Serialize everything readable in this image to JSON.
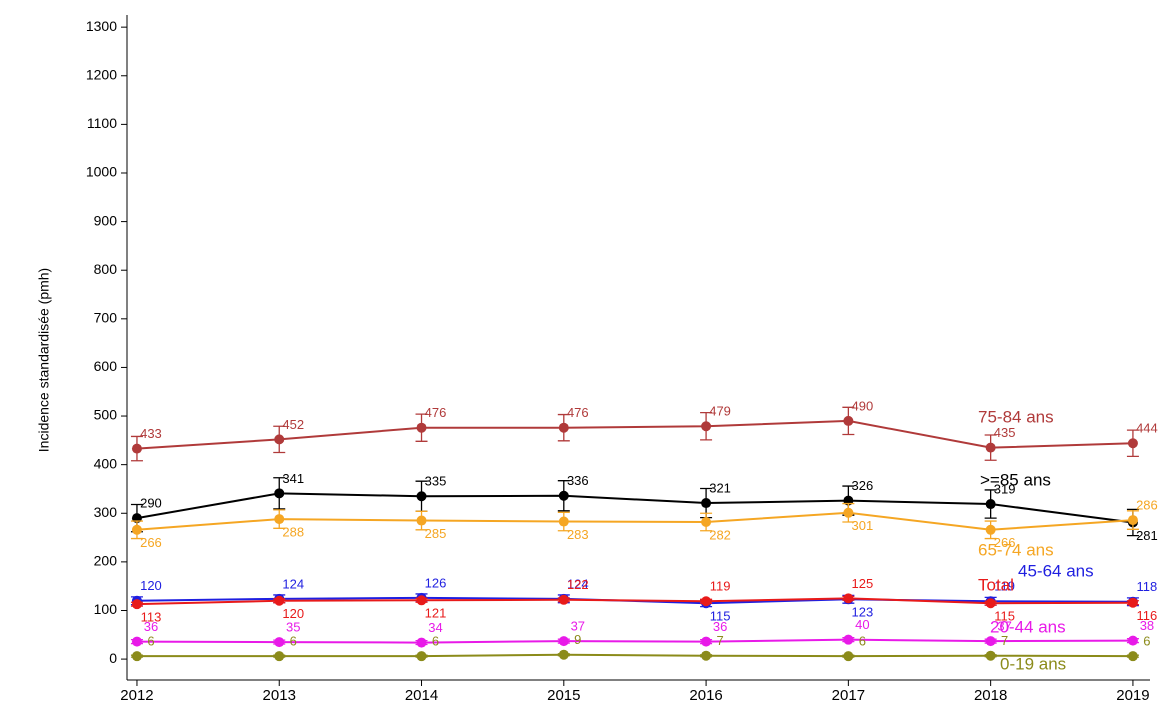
{
  "chart_data": {
    "type": "line",
    "y_label": "Incidence standardisée (pmh)",
    "x": [
      2012,
      2013,
      2014,
      2015,
      2016,
      2017,
      2018,
      2019
    ],
    "xlim": [
      2011.93,
      2019.12
    ],
    "xticks": [
      2012,
      2013,
      2014,
      2015,
      2016,
      2017,
      2018,
      2019
    ],
    "ylim": [
      -43,
      1325
    ],
    "yticks": [
      0,
      100,
      200,
      300,
      400,
      500,
      600,
      700,
      800,
      900,
      1000,
      1100,
      1200,
      1300
    ],
    "grid": false,
    "series": [
      {
        "name": "75-84 ans",
        "color": "#b03a3a",
        "values": [
          433,
          452,
          476,
          476,
          479,
          490,
          435,
          444
        ],
        "errors": [
          25,
          27,
          28,
          27,
          28,
          28,
          26,
          27
        ]
      },
      {
        "name": ">=85 ans",
        "color": "#000000",
        "values": [
          290,
          341,
          335,
          336,
          321,
          326,
          319,
          281
        ],
        "errors": [
          28,
          32,
          31,
          31,
          30,
          30,
          29,
          27
        ]
      },
      {
        "name": "65-74 ans",
        "color": "#f5a623",
        "values": [
          266,
          288,
          285,
          283,
          282,
          301,
          266,
          286
        ],
        "errors": [
          18,
          19,
          19,
          19,
          18,
          19,
          18,
          19
        ]
      },
      {
        "name": "45-64 ans",
        "color": "#1f1fe0",
        "values": [
          120,
          124,
          126,
          124,
          115,
          123,
          119,
          118
        ],
        "errors": [
          8,
          8,
          8,
          8,
          7,
          8,
          8,
          8
        ]
      },
      {
        "name": "Total",
        "color": "#e81a1a",
        "values": [
          113,
          120,
          121,
          122,
          119,
          125,
          115,
          116
        ],
        "errors": [
          4,
          4,
          4,
          4,
          4,
          4,
          4,
          4
        ]
      },
      {
        "name": "20-44 ans",
        "color": "#e81ae8",
        "values": [
          36,
          35,
          34,
          37,
          36,
          40,
          37,
          38
        ],
        "errors": [
          4,
          4,
          4,
          4,
          4,
          4,
          4,
          4
        ]
      },
      {
        "name": "0-19 ans",
        "color": "#8b8b1a",
        "values": [
          6,
          6,
          6,
          9,
          7,
          6,
          7,
          6
        ],
        "errors": [
          2,
          2,
          2,
          2,
          2,
          2,
          2,
          2
        ]
      }
    ]
  }
}
